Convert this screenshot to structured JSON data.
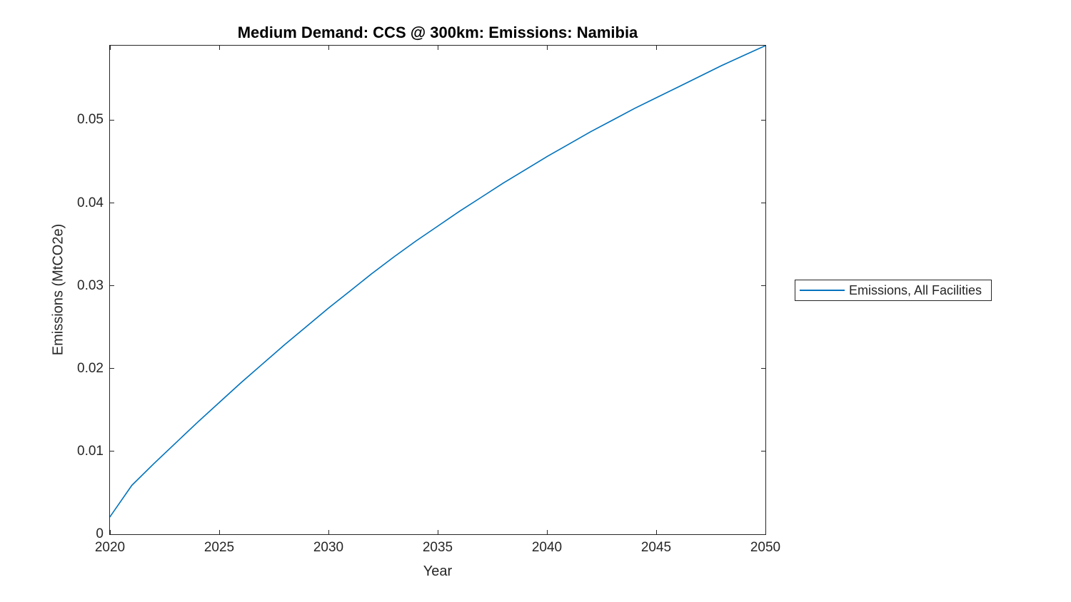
{
  "figure": {
    "background": "#ffffff"
  },
  "colors": {
    "line": "#0072BD",
    "axis": "#262626",
    "title_text": "#000000"
  },
  "chart_data": {
    "type": "line",
    "title": "Medium Demand: CCS @ 300km: Emissions: Namibia",
    "xlabel": "Year",
    "ylabel": "Emissions (MtCO2e)",
    "xlim": [
      2020,
      2050
    ],
    "ylim": [
      0,
      0.059
    ],
    "xticks": [
      2020,
      2025,
      2030,
      2035,
      2040,
      2045,
      2050
    ],
    "xtick_labels": [
      "2020",
      "2025",
      "2030",
      "2035",
      "2040",
      "2045",
      "2050"
    ],
    "yticks": [
      0,
      0.01,
      0.02,
      0.03,
      0.04,
      0.05
    ],
    "ytick_labels": [
      "0",
      "0.01",
      "0.02",
      "0.03",
      "0.04",
      "0.05"
    ],
    "grid": false,
    "legend": {
      "position": "outside-right",
      "entries": [
        {
          "label": "Emissions, All Facilities",
          "color": "#0072BD"
        }
      ]
    },
    "series": [
      {
        "name": "Emissions, All Facilities",
        "color": "#0072BD",
        "x": [
          2020,
          2021,
          2022,
          2023,
          2024,
          2025,
          2026,
          2027,
          2028,
          2029,
          2030,
          2031,
          2032,
          2033,
          2034,
          2035,
          2036,
          2037,
          2038,
          2039,
          2040,
          2041,
          2042,
          2043,
          2044,
          2045,
          2046,
          2047,
          2048,
          2049,
          2050
        ],
        "values": [
          0.0021,
          0.0059,
          0.0085,
          0.011,
          0.0135,
          0.0159,
          0.0183,
          0.0206,
          0.0229,
          0.0251,
          0.0273,
          0.0294,
          0.0315,
          0.0335,
          0.0354,
          0.0372,
          0.039,
          0.0407,
          0.0424,
          0.044,
          0.0456,
          0.0471,
          0.0486,
          0.05,
          0.0514,
          0.0527,
          0.054,
          0.0553,
          0.0566,
          0.0578,
          0.059
        ]
      }
    ]
  }
}
